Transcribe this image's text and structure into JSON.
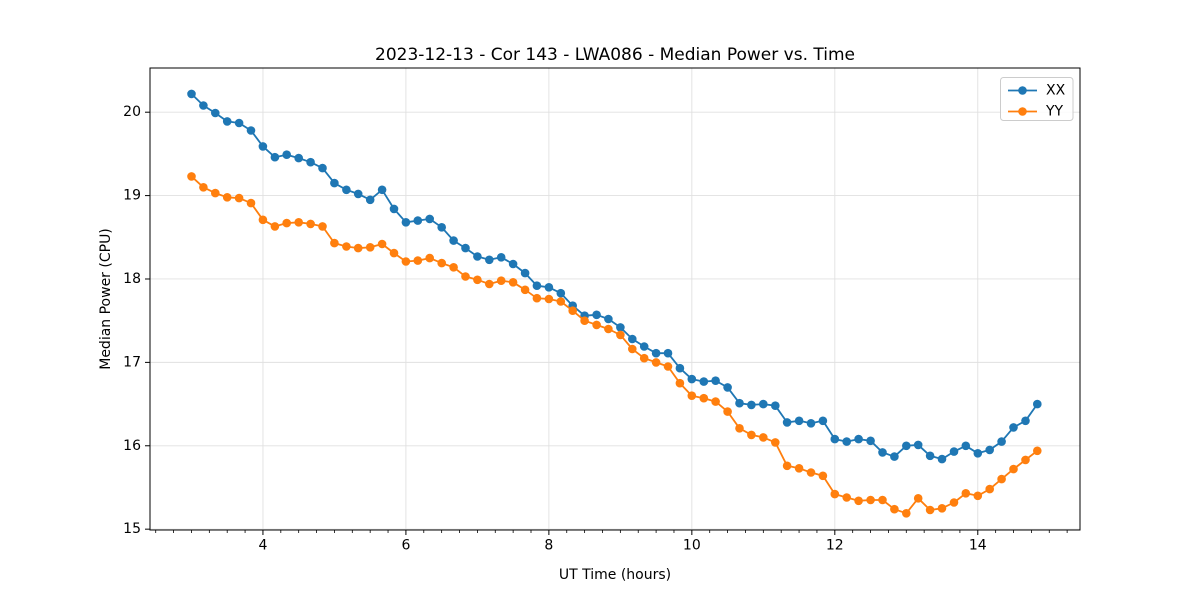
{
  "chart_data": {
    "type": "line",
    "title": "2023-12-13 - Cor 143 - LWA086 - Median Power vs. Time",
    "xlabel": "UT Time (hours)",
    "ylabel": "Median Power (CPU)",
    "xlim": [
      2.42,
      15.43
    ],
    "ylim": [
      14.99,
      20.53
    ],
    "xticks": [
      4,
      6,
      8,
      10,
      12,
      14
    ],
    "yticks": [
      15,
      16,
      17,
      18,
      19,
      20
    ],
    "minor_xtick_step": 0.25,
    "grid": true,
    "legend_position": "upper right",
    "x": [
      3.0,
      3.167,
      3.333,
      3.5,
      3.667,
      3.833,
      4.0,
      4.167,
      4.333,
      4.5,
      4.667,
      4.833,
      5.0,
      5.167,
      5.333,
      5.5,
      5.667,
      5.833,
      6.0,
      6.167,
      6.333,
      6.5,
      6.667,
      6.833,
      7.0,
      7.167,
      7.333,
      7.5,
      7.667,
      7.833,
      8.0,
      8.167,
      8.333,
      8.5,
      8.667,
      8.833,
      9.0,
      9.167,
      9.333,
      9.5,
      9.667,
      9.833,
      10.0,
      10.167,
      10.333,
      10.5,
      10.667,
      10.833,
      11.0,
      11.167,
      11.333,
      11.5,
      11.667,
      11.833,
      12.0,
      12.167,
      12.333,
      12.5,
      12.667,
      12.833,
      13.0,
      13.167,
      13.333,
      13.5,
      13.667,
      13.833,
      14.0,
      14.167,
      14.333,
      14.5,
      14.667,
      14.833
    ],
    "series": [
      {
        "name": "XX",
        "color": "#1f77b4",
        "values": [
          20.22,
          20.08,
          19.99,
          19.89,
          19.87,
          19.78,
          19.59,
          19.46,
          19.49,
          19.45,
          19.4,
          19.33,
          19.15,
          19.07,
          19.02,
          18.95,
          19.07,
          18.84,
          18.68,
          18.7,
          18.72,
          18.62,
          18.46,
          18.37,
          18.27,
          18.23,
          18.26,
          18.18,
          18.07,
          17.92,
          17.9,
          17.83,
          17.68,
          17.56,
          17.57,
          17.52,
          17.42,
          17.28,
          17.19,
          17.11,
          17.11,
          16.93,
          16.8,
          16.77,
          16.78,
          16.7,
          16.51,
          16.49,
          16.5,
          16.48,
          16.28,
          16.3,
          16.27,
          16.3,
          16.08,
          16.05,
          16.08,
          16.06,
          15.92,
          15.87,
          16.0,
          16.01,
          15.88,
          15.84,
          15.93,
          16.0,
          15.91,
          15.95,
          16.05,
          16.22,
          16.3,
          16.5
        ]
      },
      {
        "name": "YY",
        "color": "#ff7f0e",
        "values": [
          19.23,
          19.1,
          19.03,
          18.98,
          18.97,
          18.91,
          18.71,
          18.63,
          18.67,
          18.68,
          18.66,
          18.63,
          18.43,
          18.39,
          18.37,
          18.38,
          18.42,
          18.31,
          18.21,
          18.22,
          18.25,
          18.19,
          18.14,
          18.03,
          17.99,
          17.94,
          17.98,
          17.96,
          17.87,
          17.77,
          17.76,
          17.73,
          17.62,
          17.5,
          17.45,
          17.4,
          17.33,
          17.16,
          17.05,
          17.0,
          16.95,
          16.75,
          16.6,
          16.57,
          16.53,
          16.41,
          16.21,
          16.13,
          16.1,
          16.04,
          15.76,
          15.73,
          15.68,
          15.64,
          15.42,
          15.38,
          15.34,
          15.35,
          15.35,
          15.24,
          15.19,
          15.37,
          15.23,
          15.25,
          15.32,
          15.43,
          15.4,
          15.48,
          15.6,
          15.72,
          15.83,
          15.94
        ]
      }
    ],
    "style": {
      "grid_color": "#e0e0e0",
      "spine_color": "#000000",
      "background": "#ffffff",
      "legend_border": "#cccccc"
    }
  }
}
